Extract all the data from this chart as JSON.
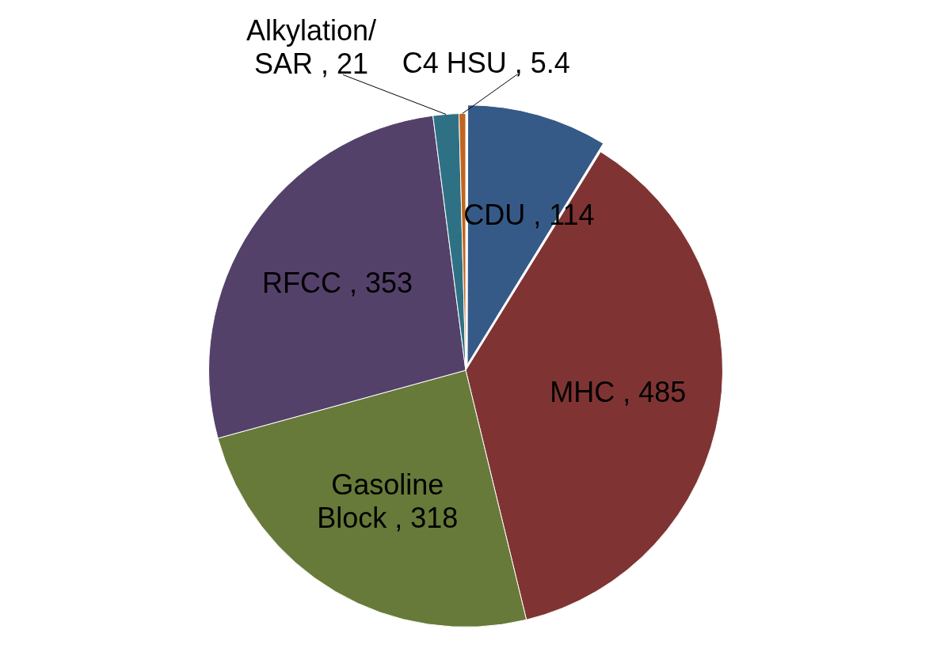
{
  "chart_data": {
    "type": "pie",
    "categories": [
      "CDU",
      "MHC",
      "Gasoline Block",
      "RFCC",
      "Alkylation/ SAR",
      "C4 HSU"
    ],
    "values": [
      114,
      485,
      318,
      353,
      21,
      5.4
    ],
    "value_labels": [
      ", 114",
      ", 485",
      ", 318",
      ", 353",
      ", 21",
      ", 5.4"
    ],
    "colors": [
      "#365a87",
      "#7f3433",
      "#677a39",
      "#54416a",
      "#2f7184",
      "#c0651f"
    ]
  }
}
